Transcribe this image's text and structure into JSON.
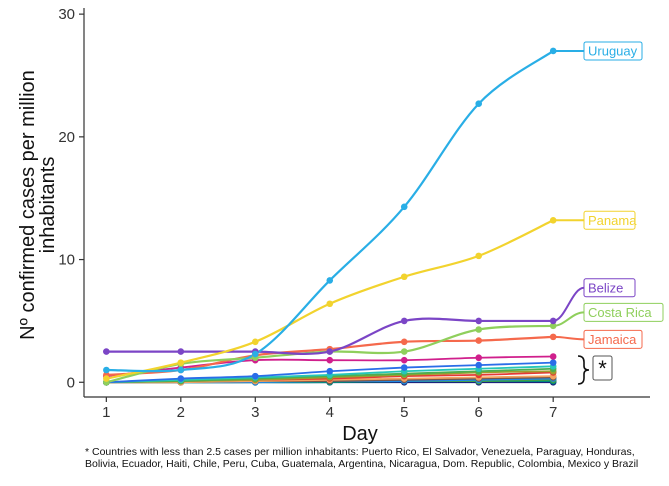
{
  "chart_data": {
    "type": "line",
    "xlabel": "Day",
    "ylabel": "Nº confirmed cases per million inhabitants",
    "ylabel_lines": [
      "Nº confirmed cases per million",
      "inhabitants"
    ],
    "x": [
      1,
      2,
      3,
      4,
      5,
      6,
      7
    ],
    "xlim": [
      0.7,
      8.3
    ],
    "ylim": [
      -1.2,
      30.5
    ],
    "yticks": [
      0,
      10,
      20,
      30
    ],
    "xticks": [
      1,
      2,
      3,
      4,
      5,
      6,
      7
    ],
    "grid": false,
    "series": [
      {
        "name": "Uruguay",
        "color": "#29aee6",
        "labeled": true,
        "values": [
          1.0,
          1.0,
          2.3,
          8.3,
          14.3,
          22.7,
          27.0
        ]
      },
      {
        "name": "Panama",
        "color": "#f2d32e",
        "labeled": true,
        "values": [
          0.3,
          1.6,
          3.3,
          6.4,
          8.6,
          10.3,
          13.2
        ]
      },
      {
        "name": "Belize",
        "color": "#7b45c6",
        "labeled": true,
        "values": [
          2.5,
          2.5,
          2.5,
          2.5,
          5.0,
          5.0,
          5.0
        ]
      },
      {
        "name": "Costa Rica",
        "color": "#8fcf5c",
        "labeled": true,
        "values": [
          0.0,
          1.5,
          2.0,
          2.5,
          2.5,
          4.3,
          4.6
        ]
      },
      {
        "name": "Jamaica",
        "color": "#f5694c",
        "labeled": true,
        "values": [
          0.6,
          1.0,
          2.2,
          2.7,
          3.3,
          3.4,
          3.7
        ]
      },
      {
        "name": "Puerto Rico",
        "color": "#d01f8c",
        "labeled": false,
        "values": [
          0.5,
          1.2,
          1.8,
          1.8,
          1.8,
          2.0,
          2.1
        ]
      },
      {
        "name": "El Salvador",
        "color": "#2a6de8",
        "labeled": false,
        "values": [
          0.0,
          0.3,
          0.5,
          0.9,
          1.2,
          1.4,
          1.6
        ]
      },
      {
        "name": "Venezuela",
        "color": "#26c6b8",
        "labeled": false,
        "values": [
          0.0,
          0.2,
          0.4,
          0.6,
          0.9,
          1.1,
          1.3
        ]
      },
      {
        "name": "Paraguay",
        "color": "#4caf50",
        "labeled": false,
        "values": [
          0.0,
          0.1,
          0.3,
          0.5,
          0.7,
          0.9,
          1.1
        ]
      },
      {
        "name": "Honduras",
        "color": "#9e9e2e",
        "labeled": false,
        "values": [
          0.0,
          0.1,
          0.2,
          0.4,
          0.6,
          0.8,
          0.9
        ]
      },
      {
        "name": "Bolivia",
        "color": "#e53935",
        "labeled": false,
        "values": [
          0.0,
          0.1,
          0.2,
          0.3,
          0.5,
          0.6,
          0.8
        ]
      },
      {
        "name": "Ecuador",
        "color": "#f4a261",
        "labeled": false,
        "values": [
          0.0,
          0.0,
          0.1,
          0.2,
          0.3,
          0.4,
          0.5
        ]
      },
      {
        "name": "Haiti",
        "color": "#795548",
        "labeled": false,
        "values": [
          0.0,
          0.0,
          0.1,
          0.1,
          0.2,
          0.3,
          0.4
        ]
      },
      {
        "name": "Chile",
        "color": "#1e88e5",
        "labeled": false,
        "values": [
          0.0,
          0.0,
          0.0,
          0.1,
          0.1,
          0.2,
          0.3
        ]
      },
      {
        "name": "Peru",
        "color": "#43a047",
        "labeled": false,
        "values": [
          0.0,
          0.0,
          0.0,
          0.1,
          0.1,
          0.1,
          0.2
        ]
      },
      {
        "name": "Cuba",
        "color": "#00897b",
        "labeled": false,
        "values": [
          0.0,
          0.0,
          0.0,
          0.0,
          0.1,
          0.1,
          0.1
        ]
      },
      {
        "name": "Brazil",
        "color": "#1a237e",
        "labeled": false,
        "values": [
          0.0,
          0.0,
          0.0,
          0.0,
          0.0,
          0.0,
          0.0
        ]
      }
    ],
    "bracket_marker": "*",
    "footnote": "* Countries with less than 2.5 cases per million inhabitants: Puerto Rico, El Salvador, Venezuela, Paraguay, Honduras, Bolivia, Ecuador, Haiti, Chile, Peru, Cuba, Guatemala, Argentina, Nicaragua, Dom. Republic, Colombia, Mexico y Brazil"
  }
}
